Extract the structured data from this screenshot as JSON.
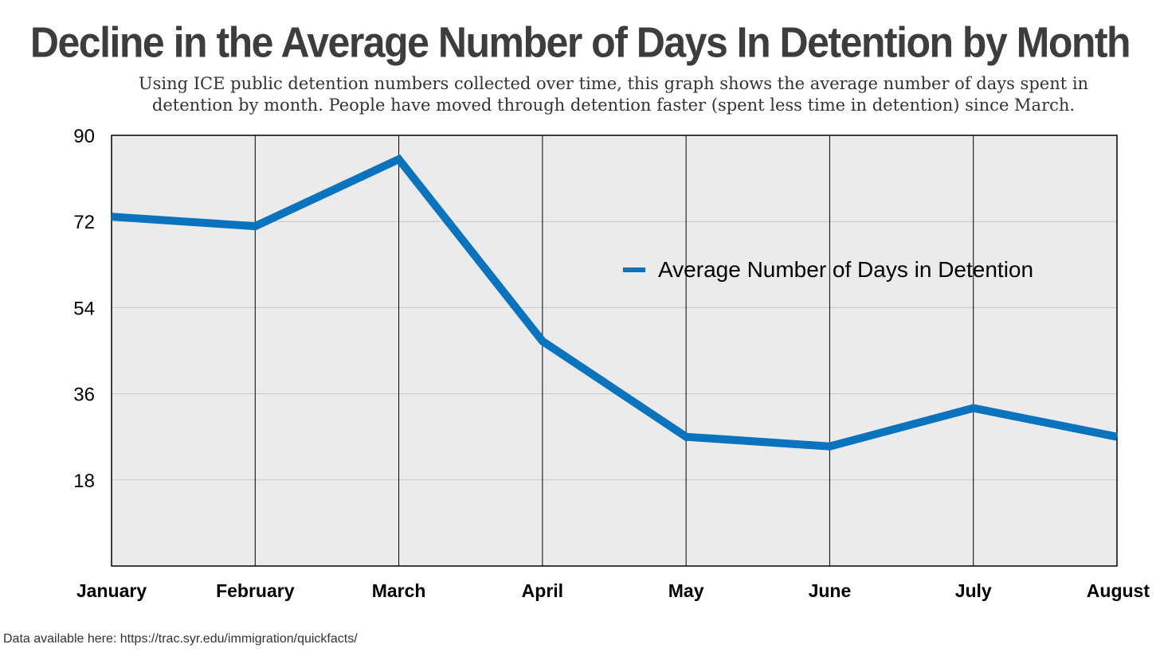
{
  "title": "Decline in the Average Number of Days In Detention by Month",
  "subtitle": "Using ICE public detention numbers collected over time, this graph shows the average number of days spent in detention by month. People have moved through detention faster (spent less time in detention) since March.",
  "footer": "Data available here: https://trac.syr.edu/immigration/quickfacts/",
  "colors": {
    "line": "#0a73bd",
    "plot_bg": "#ebebeb",
    "grid": "#c8c8c8"
  },
  "chart_data": {
    "type": "line",
    "categories": [
      "January",
      "February",
      "March",
      "April",
      "May",
      "June",
      "July",
      "August"
    ],
    "series": [
      {
        "name": "Average Number of Days in Detention",
        "values": [
          73,
          71,
          85,
          47,
          27,
          25,
          33,
          27
        ]
      }
    ],
    "ylim": [
      0,
      90
    ],
    "yticks": [
      18,
      36,
      54,
      72,
      90
    ],
    "grid": true,
    "legend": "center-right"
  }
}
